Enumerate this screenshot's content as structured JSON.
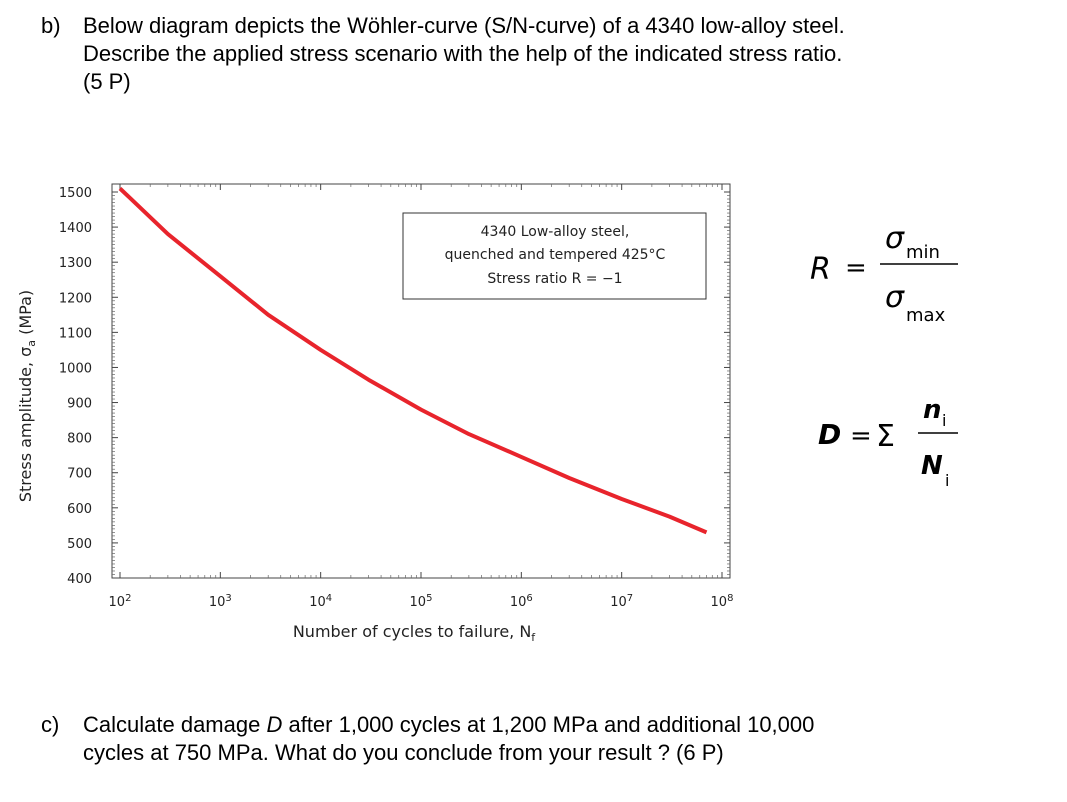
{
  "question_b": {
    "label": "b)",
    "lines": [
      "Below diagram depicts the Wöhler-curve (S/N-curve) of a 4340 low-alloy steel.",
      "Describe the applied stress scenario with the help of the indicated stress ratio.",
      "(5 P)"
    ]
  },
  "question_c": {
    "label": "c)",
    "line1": "Calculate damage ",
    "line1_var": "D",
    "line1_end": " after 1,000 cycles at 1,200 MPa and additional 10,000",
    "line2": "cycles at 750 MPa. What do you conclude from your result ? (6 P)"
  },
  "chart_data": {
    "type": "line",
    "xscale": "log",
    "xlim": [
      100,
      100000000
    ],
    "ylim": [
      400,
      1500
    ],
    "x_ticks": [
      {
        "base": "10",
        "exp": "2"
      },
      {
        "base": "10",
        "exp": "3"
      },
      {
        "base": "10",
        "exp": "4"
      },
      {
        "base": "10",
        "exp": "5"
      },
      {
        "base": "10",
        "exp": "6"
      },
      {
        "base": "10",
        "exp": "7"
      },
      {
        "base": "10",
        "exp": "8"
      }
    ],
    "y_ticks": [
      "400",
      "500",
      "600",
      "700",
      "800",
      "900",
      "1000",
      "1100",
      "1200",
      "1300",
      "1400",
      "1500"
    ],
    "xlabel": "Number of cycles to failure, N",
    "xlabel_sub": "f",
    "ylabel": "Stress amplitude, σ",
    "ylabel_sub": "a",
    "ylabel_end": " (MPa)",
    "series": [
      {
        "color": "#e8242c",
        "x": [
          100,
          300,
          1000,
          3000,
          10000,
          30000,
          100000,
          300000,
          1000000,
          3000000,
          10000000,
          30000000,
          70000000
        ],
        "y": [
          1510,
          1380,
          1260,
          1150,
          1050,
          965,
          880,
          810,
          745,
          685,
          625,
          575,
          530
        ]
      }
    ],
    "annotation": [
      "4340 Low-alloy steel,",
      "quenched and tempered 425°C",
      "Stress ratio R = −1"
    ]
  },
  "formula_R": {
    "lhs": "R",
    "eq": "=",
    "num": "σ",
    "num_sub": "min",
    "den": "σ",
    "den_sub": "max"
  },
  "formula_D": {
    "lhs": "D",
    "eq": "=",
    "sum": "Σ",
    "num": "n",
    "num_sub": "i",
    "den": "N",
    "den_sub": "i"
  }
}
